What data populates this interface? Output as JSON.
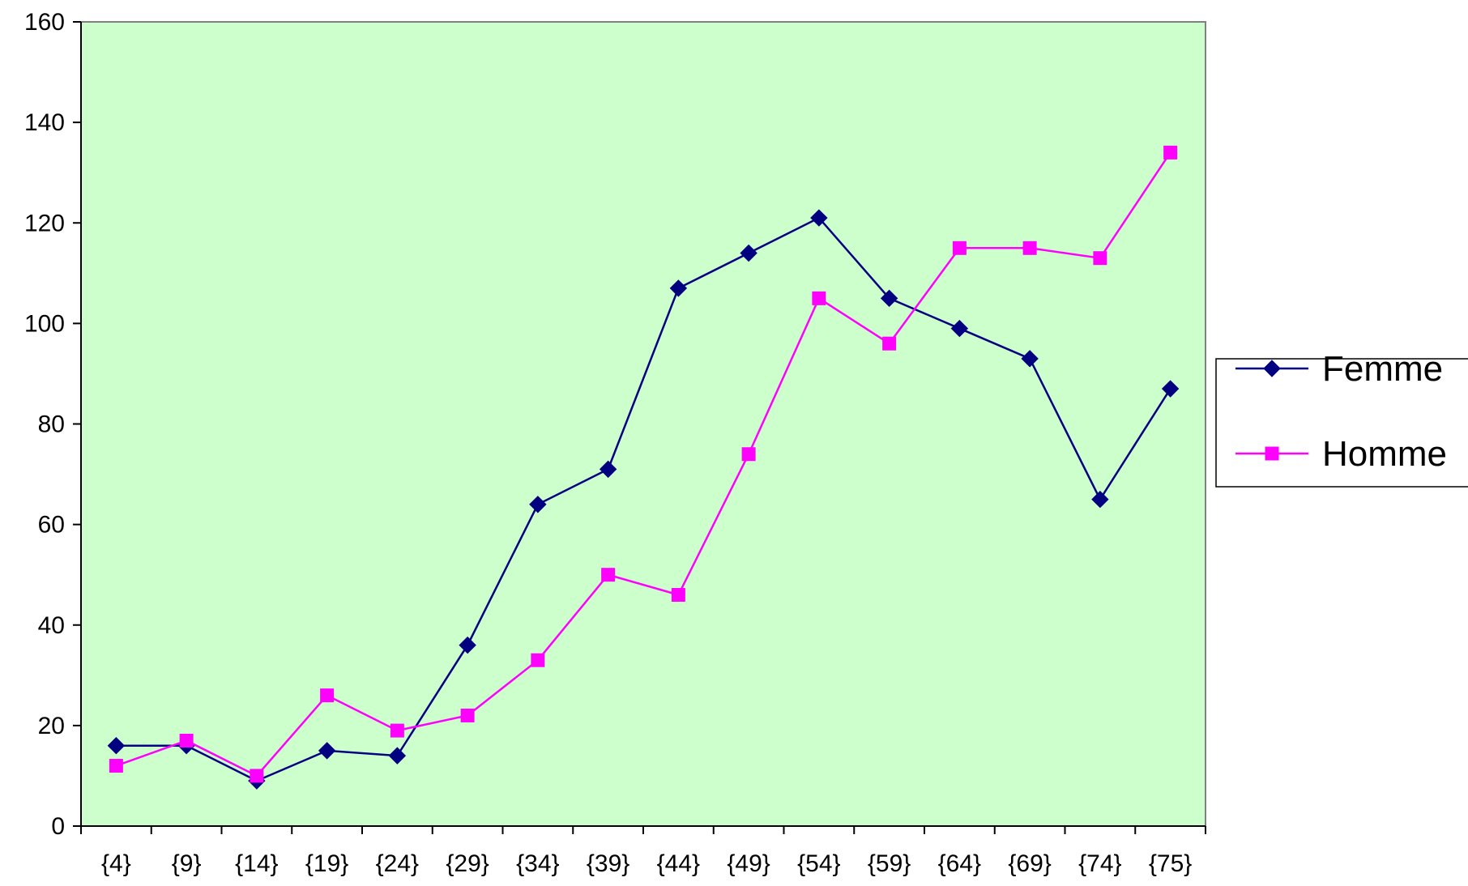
{
  "chart_data": {
    "type": "line",
    "title": "",
    "xlabel": "",
    "ylabel": "",
    "categories": [
      "{4}",
      "{9}",
      "{14}",
      "{19}",
      "{24}",
      "{29}",
      "{34}",
      "{39}",
      "{44}",
      "{49}",
      "{54}",
      "{59}",
      "{64}",
      "{69}",
      "{74}",
      "{75}"
    ],
    "ylim": [
      0,
      160
    ],
    "yticks": [
      0,
      20,
      40,
      60,
      80,
      100,
      120,
      140,
      160
    ],
    "grid": false,
    "plot_background": "#CCFFCC",
    "legend_position": "right",
    "series": [
      {
        "name": "Femme",
        "color": "#000080",
        "marker": "diamond",
        "values": [
          16,
          16,
          9,
          15,
          14,
          36,
          64,
          71,
          107,
          114,
          121,
          105,
          99,
          93,
          65,
          87
        ]
      },
      {
        "name": "Homme",
        "color": "#FF00FF",
        "marker": "square",
        "values": [
          12,
          17,
          10,
          26,
          19,
          22,
          33,
          50,
          46,
          74,
          105,
          96,
          115,
          115,
          113,
          134
        ]
      }
    ]
  }
}
